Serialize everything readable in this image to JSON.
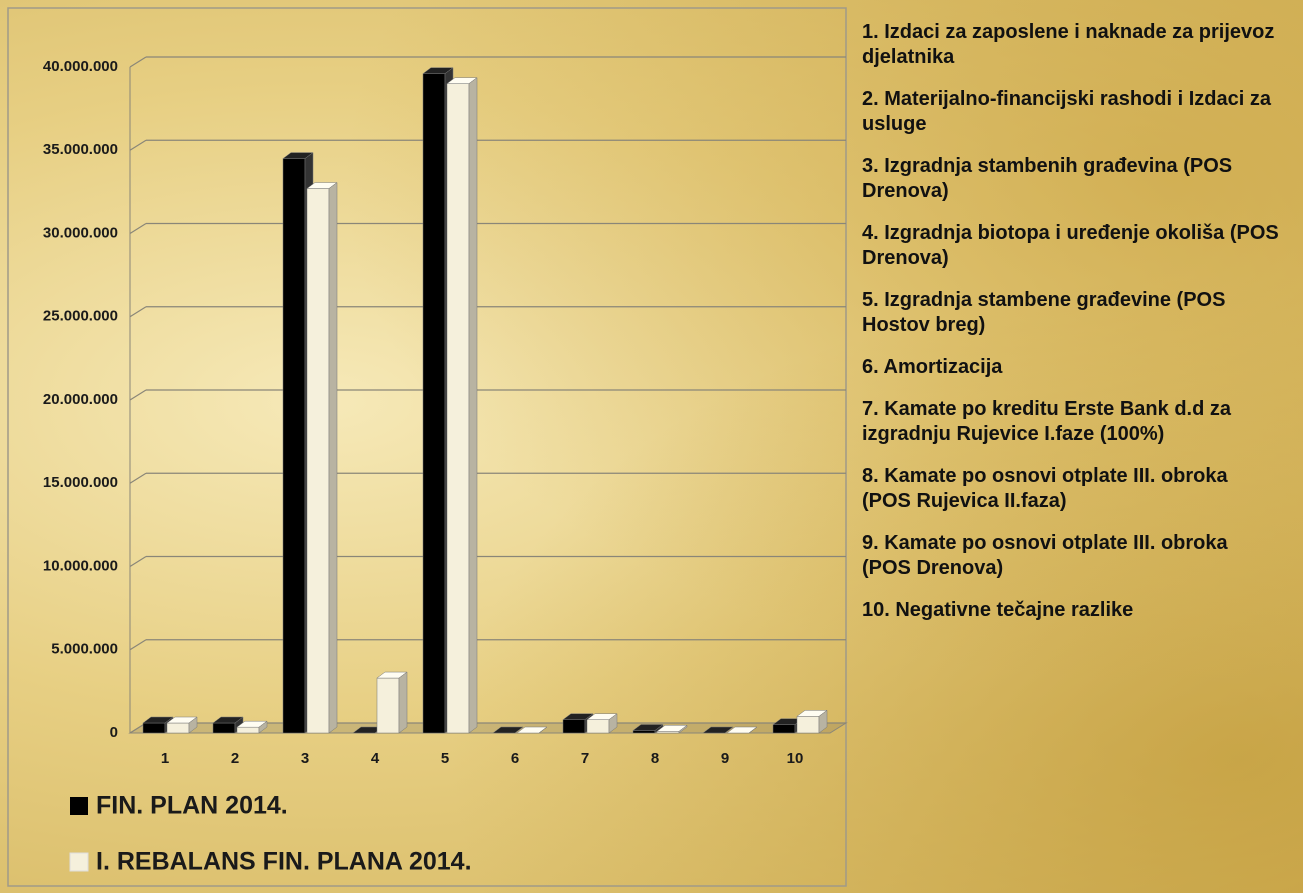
{
  "chart_data": {
    "type": "bar3d",
    "categories": [
      "1",
      "2",
      "3",
      "4",
      "5",
      "6",
      "7",
      "8",
      "9",
      "10"
    ],
    "series": [
      {
        "name": "FIN. PLAN 2014.",
        "color": "#000000",
        "values": [
          600000,
          600000,
          34500000,
          0,
          39600000,
          0,
          800000,
          150000,
          0,
          500000
        ]
      },
      {
        "name": "I. REBALANS FIN. PLANA 2014.",
        "color": "#f5f0dc",
        "values": [
          600000,
          350000,
          32700000,
          3300000,
          39000000,
          0,
          800000,
          100000,
          0,
          1000000
        ]
      }
    ],
    "ylim": [
      0,
      40000000
    ],
    "yticks": [
      0,
      {
        "value": 5000000,
        "label": "5.000.000"
      },
      {
        "value": 10000000,
        "label": "10.000.000"
      },
      {
        "value": 15000000,
        "label": "15.000.000"
      },
      {
        "value": 20000000,
        "label": "20.000.000"
      },
      {
        "value": 25000000,
        "label": "25.000.000"
      },
      {
        "value": 30000000,
        "label": "30.000.000"
      },
      {
        "value": 35000000,
        "label": "35.000.000"
      },
      {
        "value": 40000000,
        "label": "40.000.000"
      }
    ],
    "grid": true,
    "legend": "bottom-left",
    "annotations": [
      "1. Izdaci za zaposlene i naknade za prijevoz djelatnika",
      "2. Materijalno-financijski rashodi i Izdaci za usluge",
      "3. Izgradnja stambenih građevina (POS Drenova)",
      "4. Izgradnja biotopa i uređenje okoliša (POS Drenova)",
      "5. Izgradnja stambene građevine (POS Hostov breg)",
      "6. Amortizacija",
      "7. Kamate po kreditu Erste Bank d.d za izgradnju Rujevice I.faze (100%)",
      "8. Kamate po osnovi otplate III. obroka (POS Rujevica II.faza)",
      "9. Kamate po osnovi otplate III. obroka (POS Drenova)",
      "10. Negativne tečajne razlike"
    ]
  }
}
